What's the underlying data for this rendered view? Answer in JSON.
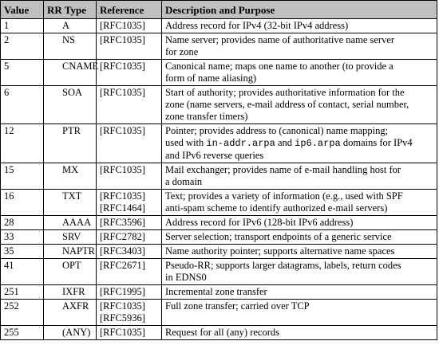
{
  "headers": {
    "value": "Value",
    "type": "RR Type",
    "reference": "Reference",
    "description": "Description and Purpose"
  },
  "rows": [
    {
      "value": "1",
      "type": "A",
      "refs": [
        "[RFC1035]"
      ],
      "desc": [
        "Address record for IPv4 (32-bit IPv4 address)"
      ]
    },
    {
      "value": "2",
      "type": "NS",
      "refs": [
        "[RFC1035]"
      ],
      "desc": [
        "Name server; provides name of authoritative name server",
        "for zone"
      ]
    },
    {
      "value": "5",
      "type": "CNAME",
      "refs": [
        "[RFC1035]"
      ],
      "desc": [
        "Canonical name; maps one name to another (to provide a",
        "form of name aliasing)"
      ]
    },
    {
      "value": "6",
      "type": "SOA",
      "refs": [
        "[RFC1035]"
      ],
      "desc": [
        "Start of authority; provides authoritative information for the",
        "zone (name servers, e-mail address of contact, serial number,",
        "zone transfer timers)"
      ]
    },
    {
      "value": "12",
      "type": "PTR",
      "refs": [
        "[RFC1035]"
      ],
      "desc_ptr": {
        "line1": "Pointer; provides address to (canonical) name mapping;",
        "line2_a": "used with ",
        "code1": "in-addr.arpa",
        "line2_b": " and ",
        "code2": "ip6.arpa",
        "line2_c": " domains for IPv4",
        "line3": "and IPv6 reverse queries"
      }
    },
    {
      "value": "15",
      "type": "MX",
      "refs": [
        "[RFC1035]"
      ],
      "desc": [
        "Mail exchanger; provides name of e-mail handling host for",
        "a domain"
      ]
    },
    {
      "value": "16",
      "type": "TXT",
      "refs": [
        "[RFC1035]",
        "[RFC1464]"
      ],
      "desc": [
        "Text; provides a variety of information (e.g., used with SPF",
        "anti-spam scheme to identify authorized e-mail servers)"
      ]
    },
    {
      "value": "28",
      "type": "AAAA",
      "refs": [
        "[RFC3596]"
      ],
      "desc": [
        "Address record for IPv6 (128-bit IPv6 address)"
      ]
    },
    {
      "value": "33",
      "type": "SRV",
      "refs": [
        "[RFC2782]"
      ],
      "desc": [
        "Server selection; transport endpoints of a generic service"
      ]
    },
    {
      "value": "35",
      "type": "NAPTR",
      "refs": [
        "[RFC3403]"
      ],
      "desc": [
        "Name authority pointer; supports alternative name spaces"
      ]
    },
    {
      "value": "41",
      "type": "OPT",
      "refs": [
        "[RFC2671]"
      ],
      "desc": [
        "Pseudo-RR; supports larger datagrams, labels, return codes",
        "in EDNS0"
      ]
    },
    {
      "value": "251",
      "type": "IXFR",
      "refs": [
        "[RFC1995]"
      ],
      "desc": [
        "Incremental zone transfer"
      ]
    },
    {
      "value": "252",
      "type": "AXFR",
      "refs": [
        "[RFC1035]",
        "[RFC5936]"
      ],
      "desc": [
        "Full zone transfer; carried over TCP"
      ]
    },
    {
      "value": "255",
      "type": "(ANY)",
      "refs": [
        "[RFC1035]"
      ],
      "desc": [
        "Request for all (any) records"
      ]
    }
  ]
}
